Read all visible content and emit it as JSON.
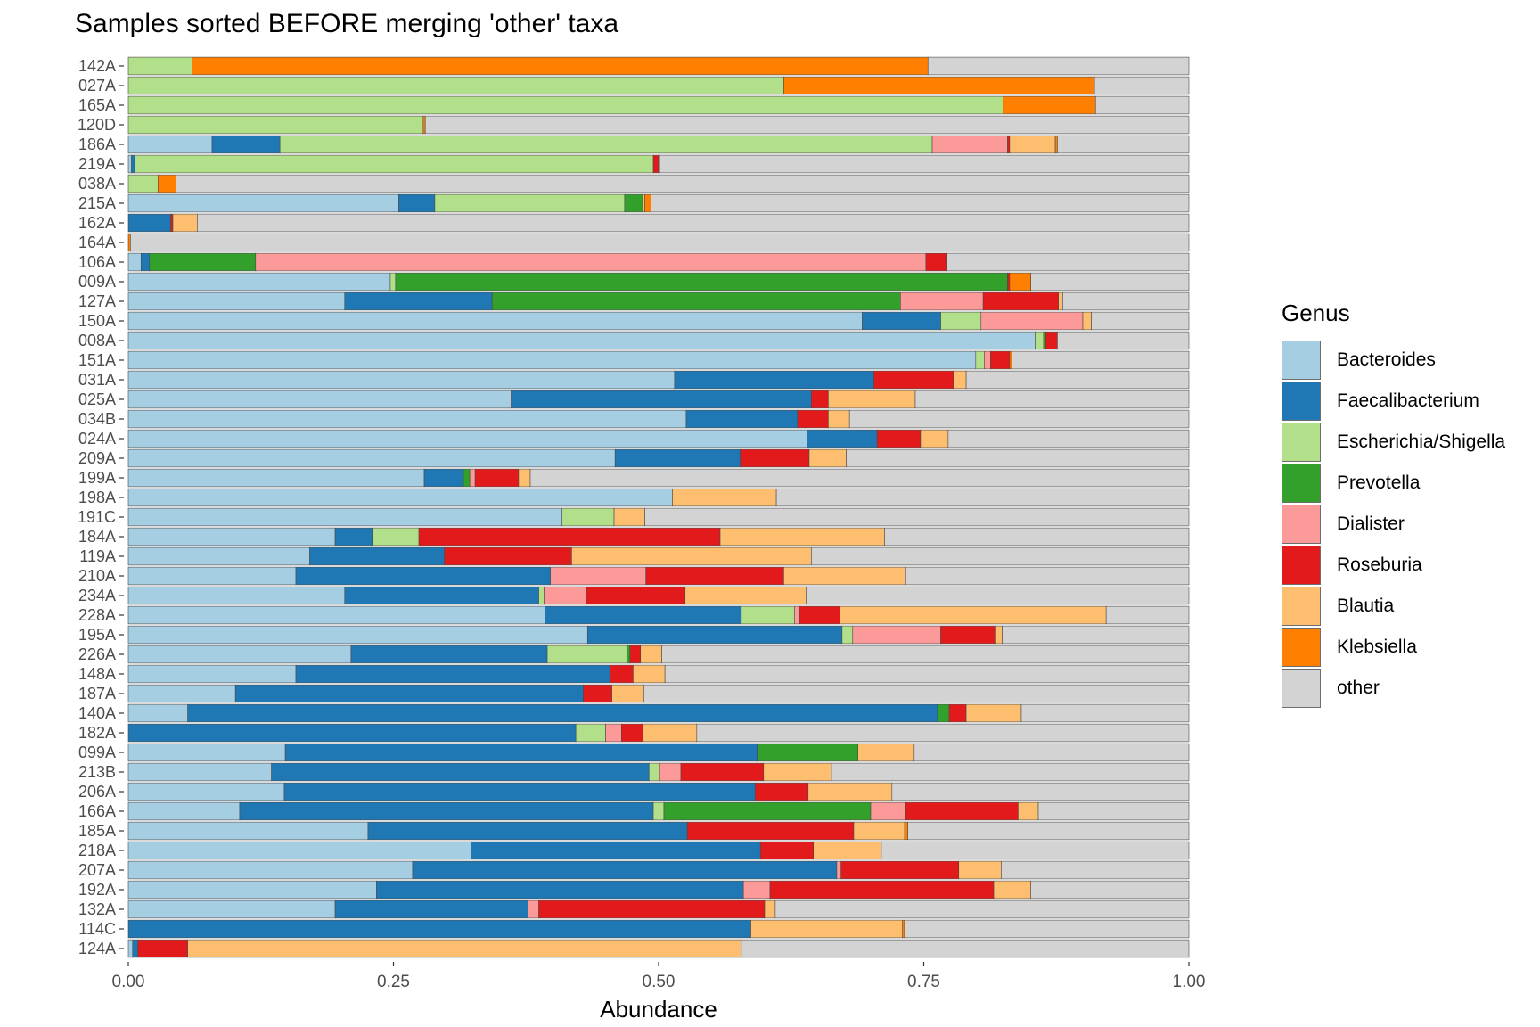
{
  "chart_data": {
    "type": "bar",
    "orientation": "horizontal",
    "stacked": true,
    "title": "Samples sorted BEFORE merging 'other' taxa",
    "xlabel": "Abundance",
    "ylabel": "",
    "xlim": [
      0,
      1
    ],
    "xticks": [
      "0.00",
      "0.25",
      "0.50",
      "0.75",
      "1.00"
    ],
    "tick_values": [
      0,
      0.25,
      0.5,
      0.75,
      1
    ],
    "grid": false,
    "legend": {
      "title": "Genus",
      "placement": "right"
    },
    "series": [
      {
        "name": "Bacteroides",
        "color": "#A6CEE3"
      },
      {
        "name": "Faecalibacterium",
        "color": "#1F78B4"
      },
      {
        "name": "Escherichia/Shigella",
        "color": "#B2DF8A"
      },
      {
        "name": "Prevotella",
        "color": "#33A02C"
      },
      {
        "name": "Dialister",
        "color": "#FB9A99"
      },
      {
        "name": "Roseburia",
        "color": "#E31A1C"
      },
      {
        "name": "Blautia",
        "color": "#FDBF6F"
      },
      {
        "name": "Klebsiella",
        "color": "#FF7F00"
      },
      {
        "name": "other",
        "color": "#D3D3D3"
      }
    ],
    "samples": [
      {
        "name": "142A",
        "values": [
          0,
          0,
          0.06,
          0,
          0,
          0,
          0,
          0.694,
          0.246
        ]
      },
      {
        "name": "027A",
        "values": [
          0,
          0,
          0.618,
          0,
          0,
          0,
          0,
          0.293,
          0.089
        ]
      },
      {
        "name": "165A",
        "values": [
          0,
          0,
          0.825,
          0,
          0,
          0,
          0,
          0.087,
          0.088
        ]
      },
      {
        "name": "120D",
        "values": [
          0,
          0,
          0.278,
          0,
          0,
          0,
          0,
          0.002,
          0.72
        ]
      },
      {
        "name": "186A",
        "values": [
          0.079,
          0.064,
          0.615,
          0,
          0.071,
          0.002,
          0.043,
          0.002,
          0.124
        ]
      },
      {
        "name": "219A",
        "values": [
          0.003,
          0.003,
          0.489,
          0,
          0,
          0.005,
          0,
          0.001,
          0.499
        ]
      },
      {
        "name": "038A",
        "values": [
          0,
          0,
          0.028,
          0,
          0,
          0,
          0,
          0.017,
          0.955
        ]
      },
      {
        "name": "215A",
        "values": [
          0.255,
          0.034,
          0.179,
          0.017,
          0,
          0,
          0.002,
          0.006,
          0.507
        ]
      },
      {
        "name": "162A",
        "values": [
          0,
          0.04,
          0,
          0,
          0,
          0.002,
          0.023,
          0,
          0.935
        ]
      },
      {
        "name": "164A",
        "values": [
          0,
          0,
          0,
          0,
          0,
          0,
          0,
          0.002,
          0.998
        ]
      },
      {
        "name": "106A",
        "values": [
          0.012,
          0.008,
          0,
          0.1,
          0.632,
          0.02,
          0,
          0,
          0.228
        ]
      },
      {
        "name": "009A",
        "values": [
          0.247,
          0,
          0.005,
          0.577,
          0,
          0.002,
          0,
          0.02,
          0.149
        ]
      },
      {
        "name": "127A",
        "values": [
          0.204,
          0.139,
          0,
          0.385,
          0.078,
          0.071,
          0.004,
          0,
          0.119
        ]
      },
      {
        "name": "150A",
        "values": [
          0.692,
          0.074,
          0.038,
          0,
          0.096,
          0,
          0.008,
          0,
          0.092
        ]
      },
      {
        "name": "008A",
        "values": [
          0.855,
          0,
          0.008,
          0.002,
          0,
          0.011,
          0,
          0,
          0.124
        ]
      },
      {
        "name": "151A",
        "values": [
          0.799,
          0,
          0.008,
          0,
          0.006,
          0.018,
          0,
          0.002,
          0.167
        ]
      },
      {
        "name": "031A",
        "values": [
          0.515,
          0.188,
          0,
          0,
          0,
          0.075,
          0.012,
          0,
          0.21
        ]
      },
      {
        "name": "025A",
        "values": [
          0.361,
          0.283,
          0,
          0,
          0,
          0.016,
          0.082,
          0,
          0.258
        ]
      },
      {
        "name": "034B",
        "values": [
          0.526,
          0.105,
          0,
          0,
          0,
          0.029,
          0.02,
          0,
          0.32
        ]
      },
      {
        "name": "024A",
        "values": [
          0.64,
          0.066,
          0,
          0,
          0,
          0.041,
          0.026,
          0,
          0.227
        ]
      },
      {
        "name": "209A",
        "values": [
          0.459,
          0.118,
          0,
          0,
          0,
          0.065,
          0.035,
          0,
          0.323
        ]
      },
      {
        "name": "199A",
        "values": [
          0.279,
          0.037,
          0,
          0.006,
          0.005,
          0.041,
          0.011,
          0,
          0.621
        ]
      },
      {
        "name": "198A",
        "values": [
          0.513,
          0,
          0,
          0,
          0,
          0,
          0.098,
          0,
          0.389
        ]
      },
      {
        "name": "191C",
        "values": [
          0.409,
          0,
          0.049,
          0,
          0,
          0,
          0.029,
          0,
          0.513
        ]
      },
      {
        "name": "184A",
        "values": [
          0.195,
          0.035,
          0.044,
          0,
          0,
          0.284,
          0.155,
          0,
          0.287
        ]
      },
      {
        "name": "119A",
        "values": [
          0.171,
          0.127,
          0,
          0,
          0,
          0.12,
          0.226,
          0,
          0.356
        ]
      },
      {
        "name": "210A",
        "values": [
          0.158,
          0.24,
          0,
          0,
          0.09,
          0.13,
          0.115,
          0,
          0.267
        ]
      },
      {
        "name": "234A",
        "values": [
          0.204,
          0.183,
          0.005,
          0,
          0.04,
          0.093,
          0.114,
          0,
          0.361
        ]
      },
      {
        "name": "228A",
        "values": [
          0.393,
          0.185,
          0.05,
          0,
          0.005,
          0.038,
          0.251,
          0,
          0.078
        ]
      },
      {
        "name": "195A",
        "values": [
          0.433,
          0.24,
          0.01,
          0,
          0.083,
          0.052,
          0.006,
          0,
          0.176
        ]
      },
      {
        "name": "226A",
        "values": [
          0.21,
          0.185,
          0.075,
          0.003,
          0,
          0.01,
          0.02,
          0,
          0.497
        ]
      },
      {
        "name": "148A",
        "values": [
          0.158,
          0.296,
          0,
          0,
          0,
          0.022,
          0.03,
          0,
          0.494
        ]
      },
      {
        "name": "187A",
        "values": [
          0.101,
          0.328,
          0,
          0,
          0,
          0.027,
          0.03,
          0,
          0.514
        ]
      },
      {
        "name": "140A",
        "values": [
          0.056,
          0.707,
          0,
          0.011,
          0,
          0.016,
          0.052,
          0,
          0.158
        ]
      },
      {
        "name": "182A",
        "values": [
          0,
          0.422,
          0.028,
          0,
          0.015,
          0.02,
          0.051,
          0,
          0.464
        ]
      },
      {
        "name": "099A",
        "values": [
          0.148,
          0.445,
          0,
          0.095,
          0,
          0,
          0.053,
          0,
          0.259
        ]
      },
      {
        "name": "213B",
        "values": [
          0.135,
          0.356,
          0.01,
          0,
          0.02,
          0.078,
          0.064,
          0,
          0.337
        ]
      },
      {
        "name": "206A",
        "values": [
          0.147,
          0.444,
          0,
          0,
          0,
          0.05,
          0.079,
          0,
          0.28
        ]
      },
      {
        "name": "166A",
        "values": [
          0.105,
          0.39,
          0.01,
          0.195,
          0.033,
          0.106,
          0.019,
          0,
          0.142
        ]
      },
      {
        "name": "185A",
        "values": [
          0.226,
          0.301,
          0,
          0,
          0,
          0.157,
          0.048,
          0.003,
          0.265
        ]
      },
      {
        "name": "218A",
        "values": [
          0.323,
          0.273,
          0,
          0,
          0,
          0.05,
          0.064,
          0,
          0.29
        ]
      },
      {
        "name": "207A",
        "values": [
          0.268,
          0.4,
          0,
          0,
          0.004,
          0.111,
          0.04,
          0,
          0.177
        ]
      },
      {
        "name": "192A",
        "values": [
          0.234,
          0.346,
          0,
          0,
          0.025,
          0.211,
          0.035,
          0,
          0.149
        ]
      },
      {
        "name": "132A",
        "values": [
          0.195,
          0.182,
          0,
          0,
          0.01,
          0.213,
          0.01,
          0,
          0.39
        ]
      },
      {
        "name": "114C",
        "values": [
          0,
          0.587,
          0,
          0,
          0,
          0,
          0.143,
          0.002,
          0.268
        ]
      },
      {
        "name": "124A",
        "values": [
          0.004,
          0.005,
          0,
          0,
          0,
          0.047,
          0.522,
          0,
          0.422
        ]
      }
    ]
  }
}
